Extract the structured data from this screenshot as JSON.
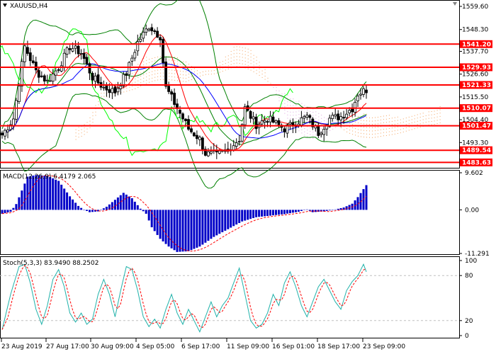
{
  "symbol": {
    "name": "XAUUSD",
    "timeframe": "H4",
    "title": "XAUUSD,H4"
  },
  "close_icon": "close-icon",
  "colors": {
    "candle": "#000000",
    "bollinger": "#008000",
    "ichimoku_tenkan": "#ff0000",
    "ichimoku_kijun": "#0000ff",
    "ichimoku_chikou": "#00ff00",
    "cloud_a": "#f4a460",
    "cloud_b": "#dda0dd",
    "level_line": "#ff0000",
    "macd_hist": "#0000c8",
    "macd_signal": "#ff0000",
    "stoch_main": "#20b2aa",
    "stoch_signal": "#ff0000",
    "grid": "#c0c0c0"
  },
  "chart_data": [
    {
      "type": "candlestick",
      "name": "price",
      "ylim": [
        1481.0,
        1562.0
      ],
      "y_ticks": [
        1559.6,
        1548.3,
        1537.7,
        1526.6,
        1515.5,
        1504.4,
        1493.3
      ],
      "x_ticks": [
        "23 Aug 2019",
        "27 Aug 17:00",
        "30 Aug 09:00",
        "4 Sep 05:00",
        "6 Sep 17:00",
        "11 Sep 09:00",
        "16 Sep 01:00",
        "18 Sep 17:00",
        "23 Sep 09:00"
      ],
      "levels": [
        1541.2,
        1529.93,
        1521.33,
        1510.07,
        1501.47,
        1489.54,
        1483.63
      ],
      "close_anchors": [
        [
          0,
          1497
        ],
        [
          4,
          1505
        ],
        [
          8,
          1540
        ],
        [
          12,
          1528
        ],
        [
          16,
          1523
        ],
        [
          20,
          1530
        ],
        [
          24,
          1540
        ],
        [
          28,
          1537
        ],
        [
          32,
          1525
        ],
        [
          36,
          1520
        ],
        [
          40,
          1518
        ],
        [
          44,
          1527
        ],
        [
          48,
          1542
        ],
        [
          52,
          1550
        ],
        [
          56,
          1545
        ],
        [
          58,
          1520
        ],
        [
          62,
          1510
        ],
        [
          66,
          1500
        ],
        [
          70,
          1495
        ],
        [
          72,
          1488
        ],
        [
          76,
          1487
        ],
        [
          80,
          1490
        ],
        [
          84,
          1495
        ],
        [
          86,
          1510
        ],
        [
          90,
          1502
        ],
        [
          94,
          1505
        ],
        [
          100,
          1500
        ],
        [
          104,
          1503
        ],
        [
          108,
          1506
        ],
        [
          112,
          1498
        ],
        [
          116,
          1505
        ],
        [
          120,
          1506
        ],
        [
          124,
          1510
        ],
        [
          126,
          1517
        ],
        [
          129,
          1519
        ]
      ],
      "candle_count": 130
    },
    {
      "type": "bar",
      "name": "MACD",
      "label": "MACD(12,26,9) 6.4179 2.065",
      "ylim": [
        -11.291,
        9.602
      ],
      "y_ticks": [
        9.602,
        0.0,
        -11.291
      ],
      "hist_anchors": [
        [
          0,
          -1
        ],
        [
          3,
          -0.5
        ],
        [
          5,
          1.5
        ],
        [
          7,
          5
        ],
        [
          9,
          8.6
        ],
        [
          12,
          9
        ],
        [
          16,
          8.8
        ],
        [
          20,
          7.5
        ],
        [
          24,
          3.5
        ],
        [
          27,
          1
        ],
        [
          29,
          0
        ],
        [
          31,
          -0.6
        ],
        [
          34,
          -0.4
        ],
        [
          37,
          0.8
        ],
        [
          41,
          3.2
        ],
        [
          43,
          4.4
        ],
        [
          46,
          3
        ],
        [
          49,
          0.3
        ],
        [
          51,
          -1
        ],
        [
          53,
          -4.5
        ],
        [
          56,
          -7.5
        ],
        [
          59,
          -9.5
        ],
        [
          62,
          -10.9
        ],
        [
          66,
          -10.7
        ],
        [
          70,
          -9.5
        ],
        [
          75,
          -7
        ],
        [
          80,
          -5
        ],
        [
          85,
          -3
        ],
        [
          90,
          -1.9
        ],
        [
          95,
          -1.5
        ],
        [
          100,
          -1.1
        ],
        [
          105,
          -0.5
        ],
        [
          108,
          0.1
        ],
        [
          110,
          -0.6
        ],
        [
          114,
          -0.4
        ],
        [
          118,
          0.1
        ],
        [
          121,
          0.6
        ],
        [
          124,
          1.6
        ],
        [
          126,
          3.3
        ],
        [
          129,
          6.4
        ]
      ]
    },
    {
      "type": "line",
      "name": "Stochastic",
      "label": "Stoch(5,3,3) 83.9490 88.2502",
      "ylim": [
        0,
        100
      ],
      "y_ticks": [
        100,
        80,
        20,
        0
      ],
      "levels": [
        80,
        20
      ],
      "main_anchors": [
        [
          0,
          8
        ],
        [
          3,
          55
        ],
        [
          6,
          92
        ],
        [
          8,
          95
        ],
        [
          10,
          70
        ],
        [
          12,
          35
        ],
        [
          14,
          15
        ],
        [
          16,
          40
        ],
        [
          18,
          75
        ],
        [
          20,
          88
        ],
        [
          22,
          65
        ],
        [
          24,
          30
        ],
        [
          26,
          18
        ],
        [
          28,
          30
        ],
        [
          30,
          15
        ],
        [
          32,
          22
        ],
        [
          34,
          55
        ],
        [
          36,
          75
        ],
        [
          38,
          55
        ],
        [
          40,
          25
        ],
        [
          42,
          60
        ],
        [
          44,
          92
        ],
        [
          46,
          88
        ],
        [
          48,
          60
        ],
        [
          50,
          25
        ],
        [
          52,
          12
        ],
        [
          54,
          22
        ],
        [
          56,
          10
        ],
        [
          58,
          35
        ],
        [
          60,
          55
        ],
        [
          62,
          30
        ],
        [
          64,
          15
        ],
        [
          66,
          35
        ],
        [
          68,
          20
        ],
        [
          70,
          5
        ],
        [
          72,
          25
        ],
        [
          74,
          45
        ],
        [
          76,
          25
        ],
        [
          78,
          40
        ],
        [
          80,
          50
        ],
        [
          82,
          70
        ],
        [
          84,
          90
        ],
        [
          86,
          55
        ],
        [
          88,
          20
        ],
        [
          90,
          10
        ],
        [
          92,
          15
        ],
        [
          94,
          30
        ],
        [
          96,
          55
        ],
        [
          98,
          40
        ],
        [
          100,
          70
        ],
        [
          102,
          85
        ],
        [
          104,
          65
        ],
        [
          106,
          40
        ],
        [
          108,
          25
        ],
        [
          110,
          45
        ],
        [
          112,
          65
        ],
        [
          114,
          75
        ],
        [
          116,
          60
        ],
        [
          118,
          45
        ],
        [
          120,
          35
        ],
        [
          122,
          60
        ],
        [
          124,
          72
        ],
        [
          126,
          80
        ],
        [
          128,
          95
        ],
        [
          129,
          85
        ]
      ],
      "signal_lag": 2
    }
  ]
}
